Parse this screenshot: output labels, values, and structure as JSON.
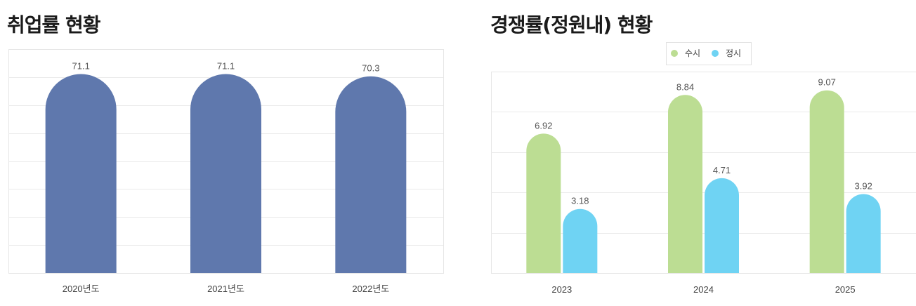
{
  "chart_data": [
    {
      "type": "bar",
      "title": "취업률 현황",
      "categories": [
        "2020년도",
        "2021년도",
        "2022년도"
      ],
      "values": [
        71.1,
        71.1,
        70.3
      ],
      "ylim": [
        0,
        80
      ],
      "grid": true,
      "colors": {
        "bar": "#5f78ad",
        "grid": "#eaeaea"
      }
    },
    {
      "type": "bar",
      "title": "경쟁률(정원내) 현황",
      "categories": [
        "2023",
        "2024",
        "2025"
      ],
      "series": [
        {
          "name": "수시",
          "values": [
            6.92,
            8.84,
            9.07
          ],
          "color": "#bcdd93"
        },
        {
          "name": "정시",
          "values": [
            3.18,
            4.71,
            3.92
          ],
          "color": "#6fd3f3"
        }
      ],
      "ylim": [
        0,
        10
      ],
      "legend": "top-center",
      "grid": true,
      "colors": {
        "grid": "#eaeaea"
      }
    }
  ]
}
